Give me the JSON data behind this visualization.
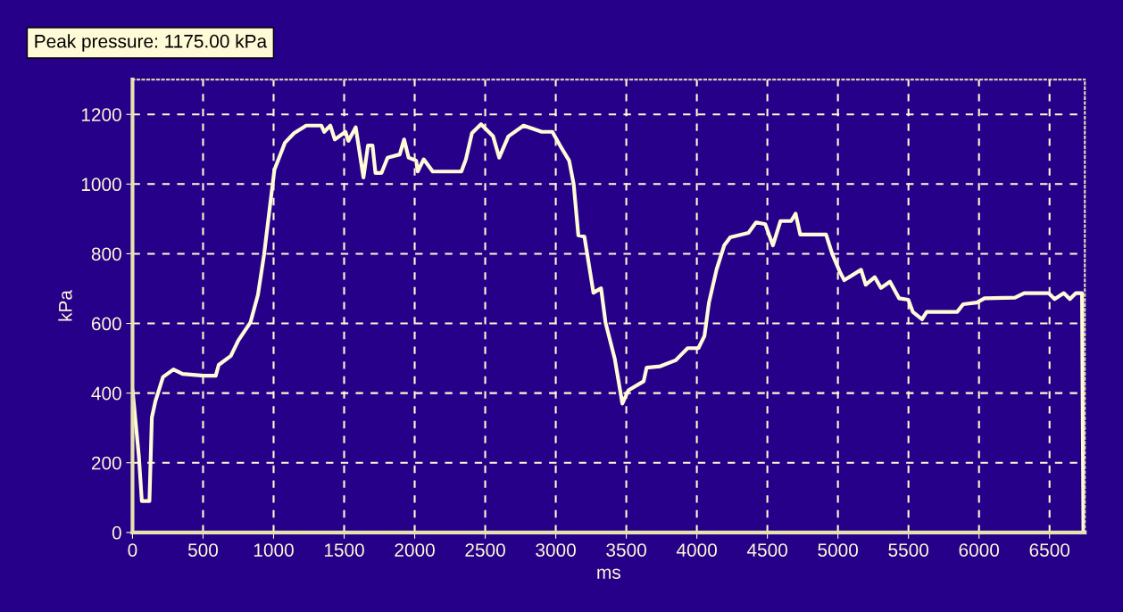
{
  "chart_data": {
    "type": "line",
    "annotations": [
      "Peak pressure: 1175.00 kPa"
    ],
    "xlabel": "ms",
    "ylabel": "kPa",
    "x": [
      0,
      45,
      66,
      100,
      120,
      137,
      162,
      216,
      290,
      355,
      504,
      590,
      611,
      697,
      750,
      836,
      889,
      932,
      974,
      1006,
      1081,
      1145,
      1231,
      1338,
      1359,
      1402,
      1434,
      1509,
      1530,
      1582,
      1615,
      1637,
      1669,
      1701,
      1722,
      1765,
      1808,
      1894,
      1925,
      1957,
      2011,
      2021,
      2064,
      2128,
      2331,
      2363,
      2406,
      2470,
      2556,
      2599,
      2664,
      2772,
      2901,
      2976,
      3030,
      3095,
      3127,
      3160,
      3203,
      3267,
      3321,
      3353,
      3418,
      3472,
      3515,
      3623,
      3644,
      3741,
      3849,
      3935,
      4011,
      4054,
      4086,
      4140,
      4194,
      4237,
      4366,
      4420,
      4485,
      4539,
      4593,
      4668,
      4700,
      4733,
      4916,
      4959,
      5013,
      5045,
      5164,
      5197,
      5261,
      5305,
      5369,
      5434,
      5499,
      5531,
      5596,
      5629,
      5845,
      5888,
      5985,
      6039,
      6255,
      6320,
      6493,
      6536,
      6601,
      6644,
      6687,
      6730,
      6740
    ],
    "series": [
      {
        "color": "#fffbd6",
        "values": [
          410,
          219,
          90,
          90,
          90,
          330,
          376,
          446,
          468,
          455,
          450,
          450,
          481,
          507,
          551,
          603,
          682,
          796,
          936,
          1041,
          1119,
          1146,
          1168,
          1168,
          1150,
          1168,
          1128,
          1150,
          1124,
          1163,
          1076,
          1019,
          1111,
          1111,
          1032,
          1032,
          1076,
          1085,
          1128,
          1076,
          1067,
          1036,
          1071,
          1036,
          1036,
          1071,
          1146,
          1172,
          1137,
          1076,
          1137,
          1168,
          1150,
          1150,
          1111,
          1067,
          1000,
          853,
          849,
          688,
          701,
          602,
          499,
          370,
          408,
          434,
          473,
          477,
          494,
          529,
          529,
          564,
          660,
          755,
          824,
          847,
          860,
          890,
          885,
          824,
          894,
          894,
          915,
          855,
          855,
          800,
          749,
          724,
          754,
          711,
          733,
          702,
          720,
          672,
          668,
          633,
          612,
          633,
          633,
          655,
          660,
          672,
          674,
          687,
          687,
          670,
          687,
          670,
          687,
          687,
          0
        ]
      }
    ],
    "xlim": [
      0,
      6750
    ],
    "ylim": [
      0,
      1300
    ],
    "xticks": [
      0,
      500,
      1000,
      1500,
      2000,
      2500,
      3000,
      3500,
      4000,
      4500,
      5000,
      5500,
      6000,
      6500
    ],
    "yticks": [
      0,
      200,
      400,
      600,
      800,
      1000,
      1200
    ],
    "grid": true
  }
}
